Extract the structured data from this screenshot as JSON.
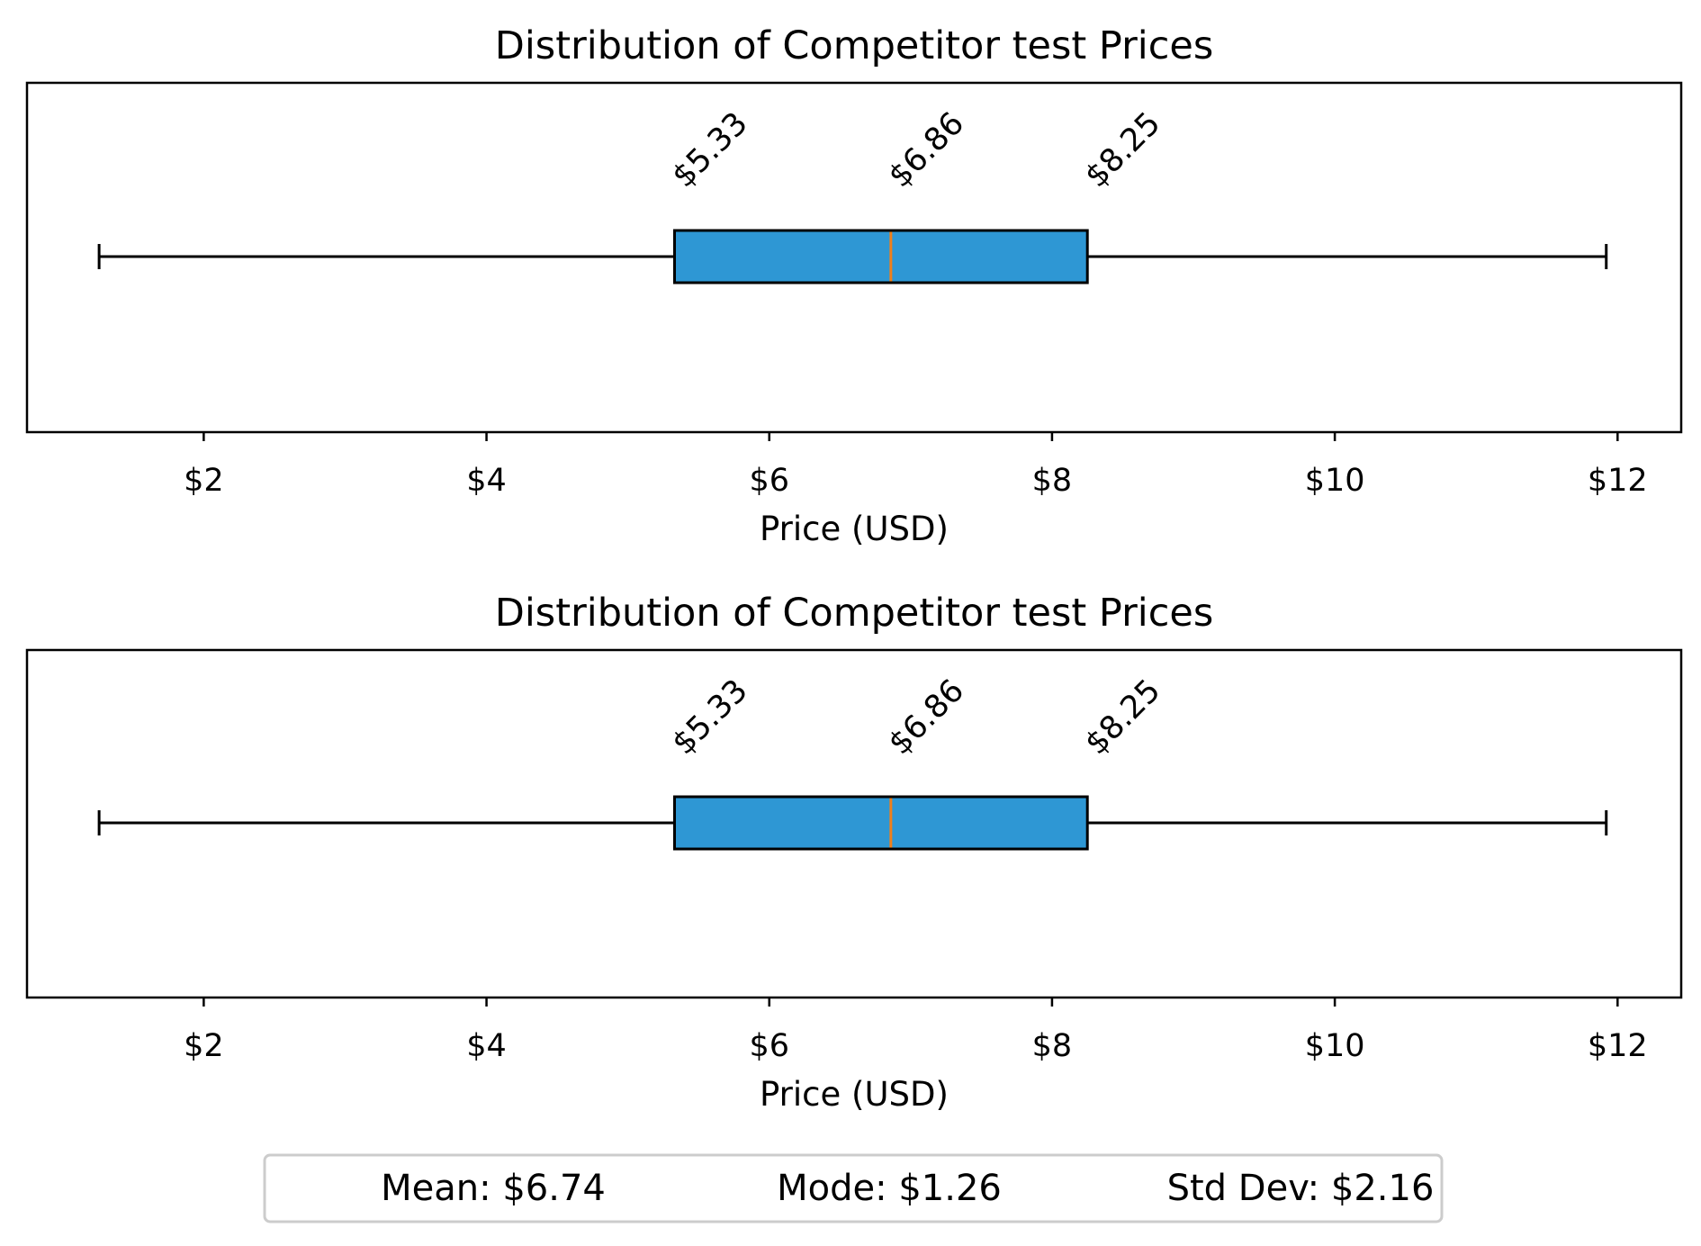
{
  "chart_data": [
    {
      "type": "boxplot",
      "title": "Distribution of Competitor test Prices",
      "xlabel": "Price (USD)",
      "ylabel": "",
      "xlim": [
        0.75,
        12.45
      ],
      "ticks": [
        2,
        4,
        6,
        8,
        10,
        12
      ],
      "tick_labels": [
        "$2",
        "$4",
        "$6",
        "$8",
        "$10",
        "$12"
      ],
      "box": {
        "min": 1.26,
        "q1": 5.33,
        "median": 6.86,
        "q3": 8.25,
        "max": 11.92
      },
      "box_labels": [
        "$5.33",
        "$6.86",
        "$8.25"
      ],
      "orientation": "horizontal",
      "grid": false
    },
    {
      "type": "boxplot",
      "title": "Distribution of Competitor test Prices",
      "xlabel": "Price (USD)",
      "ylabel": "",
      "xlim": [
        0.75,
        12.45
      ],
      "ticks": [
        2,
        4,
        6,
        8,
        10,
        12
      ],
      "tick_labels": [
        "$2",
        "$4",
        "$6",
        "$8",
        "$10",
        "$12"
      ],
      "box": {
        "min": 1.26,
        "q1": 5.33,
        "median": 6.86,
        "q3": 8.25,
        "max": 11.92
      },
      "box_labels": [
        "$5.33",
        "$6.86",
        "$8.25"
      ],
      "orientation": "horizontal",
      "grid": false
    }
  ],
  "stats": {
    "mean": "Mean: $6.74",
    "mode": "Mode: $1.26",
    "std": "Std Dev: $2.16"
  },
  "colors": {
    "box_fill": "#2e97d4",
    "median": "#f07f1a",
    "stroke": "#000000",
    "legend_border": "#cccccc"
  }
}
